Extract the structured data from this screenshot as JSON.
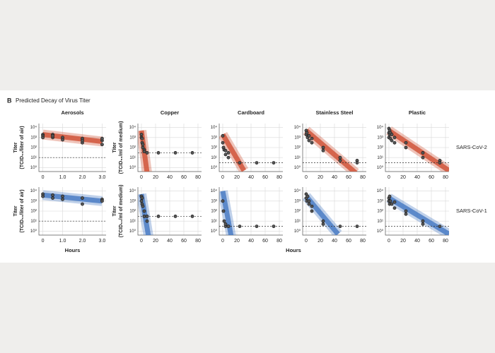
{
  "panel_label": "B",
  "title": "Predicted Decay of Virus Titer",
  "chart_data": [
    {
      "type": "scatter",
      "title": "Aerosols",
      "ylabel": [
        "Titer",
        "(TCID₅₀/liter of air)"
      ],
      "color": "#d0553a",
      "log_y": true,
      "grid": true,
      "xlim": [
        -0.2,
        3.2
      ],
      "xticks": [
        0,
        {
          "value": 1,
          "label": "1.0"
        },
        {
          "value": 2,
          "label": "2.0"
        },
        {
          "value": 3,
          "label": "3.0"
        }
      ],
      "ylim": [
        0.4,
        25000
      ],
      "yticks": [
        {
          "value": 1,
          "label": "10⁰"
        },
        {
          "value": 10,
          "label": "10¹"
        },
        {
          "value": 100,
          "label": "10²"
        },
        {
          "value": 1000,
          "label": "10³"
        },
        {
          "value": 10000,
          "label": "10⁴"
        }
      ],
      "points": {
        "x": [
          0,
          0,
          0,
          0.5,
          0.5,
          0.5,
          1,
          1,
          2,
          2,
          2,
          3,
          3,
          3
        ],
        "values": [
          2000,
          1500,
          1000,
          2000,
          1000,
          1500,
          1000,
          600,
          800,
          300,
          500,
          500,
          200,
          800
        ]
      },
      "fit": {
        "x": [
          0,
          3
        ],
        "values": [
          2000,
          400
        ]
      },
      "detection_limit": 10
    },
    {
      "type": "scatter",
      "title": "Copper",
      "ylabel": [
        "Titer",
        "(TCID₅₀/ml of medium)"
      ],
      "color": "#d0553a",
      "log_y": true,
      "grid": true,
      "xlim": [
        -5,
        85
      ],
      "xticks": [
        0,
        20,
        40,
        60,
        80
      ],
      "ylim": [
        0.4,
        25000
      ],
      "yticks": [
        {
          "value": 1,
          "label": "10⁰"
        },
        {
          "value": 10,
          "label": "10¹"
        },
        {
          "value": 100,
          "label": "10²"
        },
        {
          "value": 1000,
          "label": "10³"
        },
        {
          "value": 10000,
          "label": "10⁴"
        }
      ],
      "points": {
        "x": [
          0,
          0,
          1,
          1,
          2,
          2,
          4,
          4,
          8,
          24,
          48,
          72
        ],
        "values": [
          2000,
          1000,
          800,
          300,
          100,
          200,
          60,
          40,
          30,
          30,
          30,
          30
        ]
      },
      "fit": {
        "x": [
          0,
          8
        ],
        "values": [
          5000,
          0.3
        ]
      },
      "detection_limit": 30
    },
    {
      "type": "scatter",
      "title": "Cardboard",
      "color": "#d0553a",
      "log_y": true,
      "grid": true,
      "xlim": [
        -5,
        85
      ],
      "xticks": [
        0,
        20,
        40,
        60,
        80
      ],
      "ylim": [
        0.4,
        25000
      ],
      "yticks": [
        {
          "value": 1,
          "label": "10⁰"
        },
        {
          "value": 10,
          "label": "10¹"
        },
        {
          "value": 100,
          "label": "10²"
        },
        {
          "value": 1000,
          "label": "10³"
        },
        {
          "value": 10000,
          "label": "10⁴"
        }
      ],
      "points": {
        "x": [
          0,
          0,
          1,
          2,
          4,
          4,
          8,
          8,
          24,
          48,
          72
        ],
        "values": [
          1500,
          300,
          100,
          60,
          50,
          20,
          30,
          10,
          3,
          3,
          3
        ]
      },
      "fit": {
        "x": [
          0,
          30
        ],
        "values": [
          2000,
          0.5
        ]
      },
      "detection_limit": 3
    },
    {
      "type": "scatter",
      "title": "Stainless Steel",
      "color": "#d0553a",
      "log_y": true,
      "grid": true,
      "xlim": [
        -5,
        85
      ],
      "xticks": [
        0,
        20,
        40,
        60,
        80
      ],
      "ylim": [
        0.4,
        25000
      ],
      "yticks": [
        {
          "value": 1,
          "label": "10⁰"
        },
        {
          "value": 10,
          "label": "10¹"
        },
        {
          "value": 100,
          "label": "10²"
        },
        {
          "value": 1000,
          "label": "10³"
        },
        {
          "value": 10000,
          "label": "10⁴"
        }
      ],
      "points": {
        "x": [
          0,
          0,
          1,
          2,
          4,
          4,
          8,
          8,
          24,
          24,
          48,
          48,
          72,
          72
        ],
        "values": [
          5000,
          2000,
          3000,
          1000,
          1500,
          500,
          800,
          300,
          100,
          50,
          10,
          5,
          5,
          3
        ]
      },
      "fit": {
        "x": [
          0,
          70
        ],
        "values": [
          5000,
          0.3
        ]
      },
      "detection_limit": 3
    },
    {
      "type": "scatter",
      "title": "Plastic",
      "row_label": "SARS-CoV-2",
      "color": "#d0553a",
      "log_y": true,
      "grid": true,
      "xlim": [
        -5,
        85
      ],
      "xticks": [
        0,
        20,
        40,
        60,
        80
      ],
      "ylim": [
        0.4,
        25000
      ],
      "yticks": [
        {
          "value": 1,
          "label": "10⁰"
        },
        {
          "value": 10,
          "label": "10¹"
        },
        {
          "value": 100,
          "label": "10²"
        },
        {
          "value": 1000,
          "label": "10³"
        },
        {
          "value": 10000,
          "label": "10⁴"
        }
      ],
      "points": {
        "x": [
          0,
          0,
          0,
          1,
          1,
          2,
          2,
          4,
          4,
          8,
          8,
          24,
          24,
          48,
          48,
          72,
          72
        ],
        "values": [
          8000,
          3000,
          1000,
          5000,
          2000,
          3000,
          800,
          2000,
          500,
          1000,
          300,
          300,
          100,
          30,
          10,
          5,
          3
        ]
      },
      "fit": {
        "x": [
          0,
          85
        ],
        "values": [
          5000,
          0.5
        ]
      },
      "detection_limit": 3
    },
    {
      "type": "scatter",
      "ylabel": [
        "Titer",
        "(TCID₅₀/liter of air)"
      ],
      "xlabel": "Hours",
      "color": "#4a7cc4",
      "log_y": true,
      "grid": true,
      "xlim": [
        -0.2,
        3.2
      ],
      "xticks": [
        0,
        {
          "value": 1,
          "label": "1.0"
        },
        {
          "value": 2,
          "label": "2.0"
        },
        {
          "value": 3,
          "label": "3.0"
        }
      ],
      "ylim": [
        0.4,
        25000
      ],
      "yticks": [
        {
          "value": 1,
          "label": "10⁰"
        },
        {
          "value": 10,
          "label": "10¹"
        },
        {
          "value": 100,
          "label": "10²"
        },
        {
          "value": 1000,
          "label": "10³"
        },
        {
          "value": 10000,
          "label": "10⁴"
        }
      ],
      "points": {
        "x": [
          0,
          0,
          0.5,
          0.5,
          1,
          1,
          2,
          2,
          3,
          3
        ],
        "values": [
          5000,
          3000,
          4000,
          2000,
          3000,
          1500,
          2000,
          500,
          1500,
          1000
        ]
      },
      "fit": {
        "x": [
          0,
          3
        ],
        "values": [
          4000,
          1000
        ]
      },
      "detection_limit": 10
    },
    {
      "type": "scatter",
      "ylabel": [
        "Titer",
        "(TCID₅₀/ml of medium)"
      ],
      "color": "#4a7cc4",
      "log_y": true,
      "grid": true,
      "xlim": [
        -5,
        85
      ],
      "xticks": [
        0,
        20,
        40,
        60,
        80
      ],
      "ylim": [
        0.4,
        25000
      ],
      "yticks": [
        {
          "value": 1,
          "label": "10⁰"
        },
        {
          "value": 10,
          "label": "10¹"
        },
        {
          "value": 100,
          "label": "10²"
        },
        {
          "value": 1000,
          "label": "10³"
        },
        {
          "value": 10000,
          "label": "10⁴"
        }
      ],
      "points": {
        "x": [
          0,
          0,
          1,
          1,
          2,
          4,
          4,
          8,
          8,
          24,
          48,
          72
        ],
        "values": [
          3000,
          1000,
          2000,
          500,
          300,
          100,
          30,
          10,
          30,
          30,
          30,
          30
        ]
      },
      "fit": {
        "x": [
          0,
          10
        ],
        "values": [
          5000,
          0.3
        ]
      },
      "detection_limit": 30
    },
    {
      "type": "scatter",
      "xlabel": "Hours",
      "color": "#4a7cc4",
      "log_y": true,
      "grid": true,
      "xlim": [
        -5,
        85
      ],
      "xticks": [
        0,
        20,
        40,
        60,
        80
      ],
      "ylim": [
        0.4,
        25000
      ],
      "yticks": [
        {
          "value": 1,
          "label": "10⁰"
        },
        {
          "value": 10,
          "label": "10¹"
        },
        {
          "value": 100,
          "label": "10²"
        },
        {
          "value": 1000,
          "label": "10³"
        },
        {
          "value": 10000,
          "label": "10⁴"
        }
      ],
      "points": {
        "x": [
          0,
          1,
          2,
          4,
          4,
          8,
          8,
          24,
          48,
          72
        ],
        "values": [
          1000,
          100,
          10,
          3,
          5,
          3,
          3,
          3,
          3,
          3
        ]
      },
      "fit": {
        "x": [
          0,
          12
        ],
        "values": [
          10000,
          0.3
        ]
      },
      "detection_limit": 3
    },
    {
      "type": "scatter",
      "color": "#4a7cc4",
      "log_y": true,
      "grid": true,
      "xlim": [
        -5,
        85
      ],
      "xticks": [
        0,
        20,
        40,
        60,
        80
      ],
      "ylim": [
        0.4,
        25000
      ],
      "yticks": [
        {
          "value": 1,
          "label": "10⁰"
        },
        {
          "value": 10,
          "label": "10¹"
        },
        {
          "value": 100,
          "label": "10²"
        },
        {
          "value": 1000,
          "label": "10³"
        },
        {
          "value": 10000,
          "label": "10⁴"
        }
      ],
      "points": {
        "x": [
          0,
          0,
          1,
          2,
          4,
          4,
          8,
          8,
          24,
          24,
          48,
          72
        ],
        "values": [
          5000,
          2000,
          1000,
          3000,
          500,
          1000,
          300,
          100,
          10,
          5,
          3,
          3
        ]
      },
      "fit": {
        "x": [
          0,
          45
        ],
        "values": [
          3000,
          0.5
        ]
      },
      "detection_limit": 3
    },
    {
      "type": "scatter",
      "row_label": "SARS-CoV-1",
      "color": "#4a7cc4",
      "log_y": true,
      "grid": true,
      "xlim": [
        -5,
        85
      ],
      "xticks": [
        0,
        20,
        40,
        60,
        80
      ],
      "ylim": [
        0.4,
        25000
      ],
      "yticks": [
        {
          "value": 1,
          "label": "10⁰"
        },
        {
          "value": 10,
          "label": "10¹"
        },
        {
          "value": 100,
          "label": "10²"
        },
        {
          "value": 1000,
          "label": "10³"
        },
        {
          "value": 10000,
          "label": "10⁴"
        }
      ],
      "points": {
        "x": [
          0,
          0,
          1,
          1,
          2,
          4,
          8,
          8,
          24,
          24,
          48,
          48,
          72
        ],
        "values": [
          2000,
          1000,
          3000,
          500,
          1000,
          500,
          800,
          200,
          100,
          50,
          10,
          5,
          3
        ]
      },
      "fit": {
        "x": [
          0,
          85
        ],
        "values": [
          2000,
          0.5
        ]
      },
      "detection_limit": 3
    }
  ]
}
